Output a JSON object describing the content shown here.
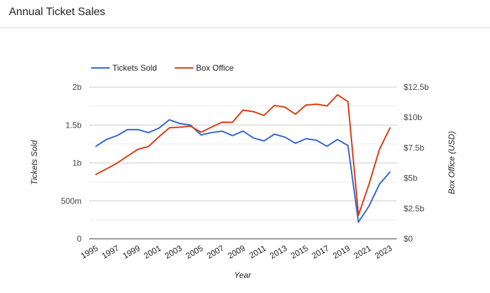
{
  "chart_data": {
    "type": "line",
    "title": "Annual Ticket Sales",
    "xlabel": "Year",
    "ylabel_left": "Tickets Sold",
    "ylabel_right": "Box Office (USD)",
    "x": [
      1995,
      1996,
      1997,
      1998,
      1999,
      2000,
      2001,
      2002,
      2003,
      2004,
      2005,
      2006,
      2007,
      2008,
      2009,
      2010,
      2011,
      2012,
      2013,
      2014,
      2015,
      2016,
      2017,
      2018,
      2019,
      2020,
      2021,
      2022,
      2023
    ],
    "x_tick_labels": [
      "1995",
      "1997",
      "1999",
      "2001",
      "2003",
      "2005",
      "2007",
      "2009",
      "2011",
      "2013",
      "2015",
      "2017",
      "2019",
      "2021",
      "2023"
    ],
    "y_left_ticks": [
      {
        "value": 0,
        "label": "0"
      },
      {
        "value": 0.5,
        "label": "500m"
      },
      {
        "value": 1.0,
        "label": "1b"
      },
      {
        "value": 1.5,
        "label": "1.5b"
      },
      {
        "value": 2.0,
        "label": "2b"
      }
    ],
    "y_right_ticks": [
      {
        "value": 0,
        "label": "$0"
      },
      {
        "value": 2.5,
        "label": "$2.5b"
      },
      {
        "value": 5,
        "label": "$5b"
      },
      {
        "value": 7.5,
        "label": "$7.5b"
      },
      {
        "value": 10,
        "label": "$10b"
      },
      {
        "value": 12.5,
        "label": "$12.5b"
      }
    ],
    "ylim_left": [
      0,
      2
    ],
    "ylim_right": [
      0,
      12.5
    ],
    "grid": true,
    "legend_position": "top-left",
    "series": [
      {
        "name": "Tickets Sold",
        "axis": "left",
        "color": "#3366cc",
        "values": [
          1.22,
          1.31,
          1.36,
          1.44,
          1.44,
          1.4,
          1.46,
          1.57,
          1.52,
          1.5,
          1.37,
          1.4,
          1.42,
          1.36,
          1.42,
          1.33,
          1.29,
          1.38,
          1.34,
          1.26,
          1.32,
          1.3,
          1.22,
          1.31,
          1.23,
          0.22,
          0.43,
          0.72,
          0.88
        ]
      },
      {
        "name": "Box Office",
        "axis": "right",
        "color": "#dc3912",
        "values": [
          5.31,
          5.76,
          6.23,
          6.81,
          7.38,
          7.6,
          8.41,
          9.15,
          9.2,
          9.29,
          8.78,
          9.2,
          9.61,
          9.6,
          10.61,
          10.48,
          10.17,
          10.99,
          10.85,
          10.27,
          11.02,
          11.1,
          10.95,
          11.87,
          11.3,
          1.95,
          4.48,
          7.37,
          9.13
        ]
      }
    ]
  }
}
